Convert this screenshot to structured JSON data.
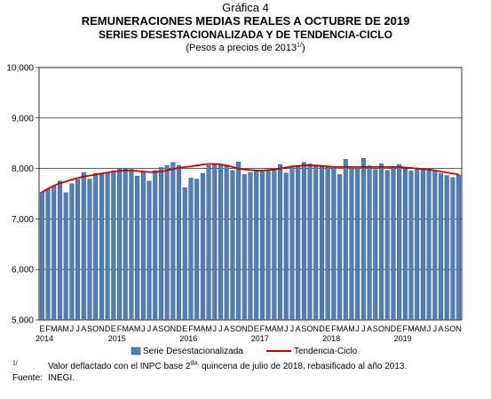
{
  "header": {
    "number": "Gráfica 4",
    "title": "REMUNERACIONES MEDIAS REALES A OCTUBRE DE 2019",
    "subtitle": "SERIES DESESTACIONALIZADA Y DE TENDENCIA-CICLO",
    "units_prefix": "(Pesos a precios de 2013",
    "units_sup": "1/",
    "units_suffix": ")"
  },
  "notes": {
    "footnote_mark": "1/",
    "footnote_pre": "Valor deflactado con el INPC base 2",
    "footnote_sup": "da.",
    "footnote_post": " quincena de julio de 2018, rebasificado al año 2013.",
    "source_label": "Fuente:",
    "source_text": "INEGI."
  },
  "colors": {
    "bar_fill": "#4f81bd",
    "bar_stroke": "#1f3864",
    "trend_line": "#c00000",
    "grid": "#000000"
  },
  "chart_data": {
    "type": "bar",
    "ylim": [
      5000,
      10000
    ],
    "yticks": [
      "5,000",
      "6,000",
      "7,000",
      "8,000",
      "9,000",
      "10,000"
    ],
    "grid": true,
    "legend_position": "bottom",
    "month_labels": [
      "E",
      "F",
      "M",
      "A",
      "M",
      "J",
      "J",
      "A",
      "S",
      "O",
      "N",
      "D"
    ],
    "years": [
      "2014",
      "2015",
      "2016",
      "2017",
      "2018",
      "2019"
    ],
    "series": [
      {
        "name": "Serie Desestacionalizada",
        "kind": "bar",
        "values": [
          7530,
          7590,
          7660,
          7750,
          7520,
          7700,
          7780,
          7920,
          7790,
          7900,
          7880,
          7920,
          7950,
          8000,
          7990,
          7980,
          7850,
          7930,
          7750,
          7960,
          8020,
          8060,
          8120,
          8060,
          7620,
          7810,
          7790,
          7900,
          8060,
          8080,
          8090,
          8070,
          7960,
          8130,
          7880,
          7920,
          7970,
          7940,
          7960,
          7990,
          8080,
          7910,
          8020,
          8050,
          8120,
          8090,
          8040,
          8040,
          8030,
          8010,
          7880,
          8180,
          8000,
          8000,
          8200,
          8050,
          7980,
          8090,
          7960,
          8040,
          8080,
          7990,
          7950,
          8000,
          7990,
          7970,
          7960,
          7900,
          7860,
          7820,
          7870
        ]
      },
      {
        "name": "Tendencia-Ciclo",
        "kind": "line",
        "values": [
          7530,
          7600,
          7660,
          7710,
          7740,
          7780,
          7810,
          7840,
          7860,
          7880,
          7900,
          7920,
          7940,
          7950,
          7960,
          7960,
          7950,
          7940,
          7930,
          7930,
          7940,
          7960,
          7990,
          8010,
          8030,
          8040,
          8060,
          8080,
          8090,
          8090,
          8080,
          8060,
          8030,
          8000,
          7980,
          7970,
          7960,
          7960,
          7970,
          7980,
          8000,
          8020,
          8040,
          8050,
          8060,
          8060,
          8060,
          8050,
          8040,
          8030,
          8030,
          8030,
          8030,
          8030,
          8030,
          8030,
          8030,
          8030,
          8030,
          8030,
          8030,
          8020,
          8010,
          8000,
          7990,
          7980,
          7960,
          7940,
          7920,
          7900,
          7880
        ]
      }
    ]
  }
}
